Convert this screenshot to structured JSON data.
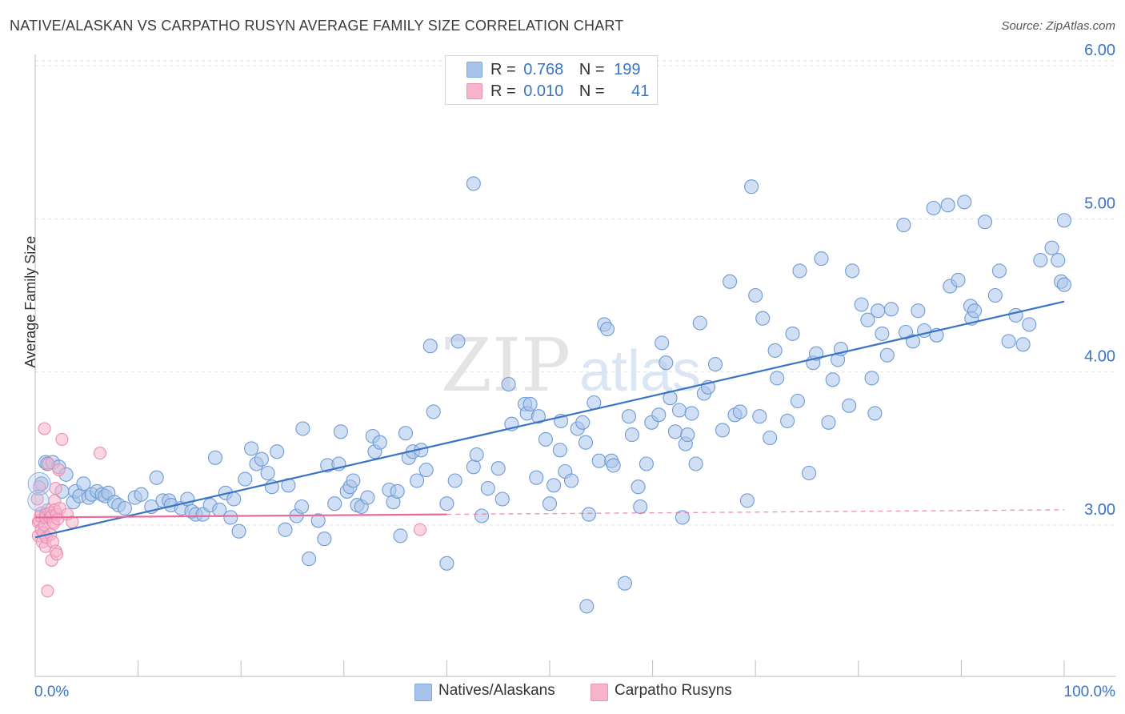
{
  "title": "NATIVE/ALASKAN VS CARPATHO RUSYN AVERAGE FAMILY SIZE CORRELATION CHART",
  "source": "Source: ZipAtlas.com",
  "watermark": {
    "zip": "ZIP",
    "atlas": "atlas"
  },
  "legend_top": [
    {
      "r_label": "R =",
      "r_value": "0.768",
      "n_label": "N =",
      "n_value": "199"
    },
    {
      "r_label": "R =",
      "r_value": "0.010",
      "n_label": "N =",
      "n_value": "41"
    }
  ],
  "legend_bottom": [
    "Natives/Alaskans",
    "Carpatho Rusyns"
  ],
  "colors": {
    "blue": "#3a74c5",
    "blue_fill": "#a9c4ea",
    "pink": "#e8699a",
    "pink_fill": "#f6b5cc",
    "grid": "#e2e2e2",
    "axis_text": "#3a74c5"
  },
  "chart_data": {
    "type": "scatter",
    "xlabel": "",
    "ylabel": "Average Family Size",
    "x_tick_labels": [
      "0.0%",
      "100.0%"
    ],
    "y_tick_labels": [
      "3.00",
      "4.00",
      "5.00",
      "6.00"
    ],
    "xlim": [
      0,
      100
    ],
    "ylim": [
      2.05,
      6.1
    ],
    "series": [
      {
        "name": "Natives/Alaskans",
        "points": [
          [
            0.6,
            3.27
          ],
          [
            1.0,
            3.41
          ],
          [
            1.2,
            3.4
          ],
          [
            1.7,
            3.41
          ],
          [
            2.3,
            3.38
          ],
          [
            2.6,
            3.22
          ],
          [
            3.0,
            3.33
          ],
          [
            3.7,
            3.15
          ],
          [
            3.9,
            3.22
          ],
          [
            4.3,
            3.19
          ],
          [
            4.7,
            3.27
          ],
          [
            5.2,
            3.18
          ],
          [
            5.5,
            3.2
          ],
          [
            6.0,
            3.22
          ],
          [
            6.5,
            3.2
          ],
          [
            6.8,
            3.19
          ],
          [
            7.1,
            3.21
          ],
          [
            7.7,
            3.15
          ],
          [
            8.1,
            3.13
          ],
          [
            8.7,
            3.11
          ],
          [
            9.7,
            3.18
          ],
          [
            10.3,
            3.2
          ],
          [
            11.3,
            3.12
          ],
          [
            11.8,
            3.31
          ],
          [
            12.4,
            3.16
          ],
          [
            13.0,
            3.16
          ],
          [
            13.2,
            3.13
          ],
          [
            14.2,
            3.11
          ],
          [
            14.8,
            3.17
          ],
          [
            15.2,
            3.09
          ],
          [
            15.6,
            3.07
          ],
          [
            16.3,
            3.07
          ],
          [
            17.0,
            3.13
          ],
          [
            17.5,
            3.44
          ],
          [
            17.9,
            3.1
          ],
          [
            18.5,
            3.21
          ],
          [
            19.0,
            3.05
          ],
          [
            19.3,
            3.17
          ],
          [
            19.8,
            2.96
          ],
          [
            20.4,
            3.3
          ],
          [
            21.0,
            3.5
          ],
          [
            21.5,
            3.4
          ],
          [
            22.0,
            3.43
          ],
          [
            22.6,
            3.34
          ],
          [
            23.0,
            3.25
          ],
          [
            23.5,
            3.48
          ],
          [
            24.3,
            2.97
          ],
          [
            24.6,
            3.26
          ],
          [
            25.4,
            3.06
          ],
          [
            25.9,
            3.12
          ],
          [
            26.0,
            3.63
          ],
          [
            26.6,
            2.78
          ],
          [
            27.5,
            3.03
          ],
          [
            28.1,
            2.91
          ],
          [
            28.4,
            3.39
          ],
          [
            29.1,
            3.14
          ],
          [
            29.5,
            3.4
          ],
          [
            29.7,
            3.61
          ],
          [
            30.3,
            3.22
          ],
          [
            30.6,
            3.25
          ],
          [
            30.9,
            3.29
          ],
          [
            31.3,
            3.13
          ],
          [
            31.7,
            3.12
          ],
          [
            32.3,
            3.18
          ],
          [
            32.8,
            3.58
          ],
          [
            33.0,
            3.48
          ],
          [
            33.5,
            3.54
          ],
          [
            34.4,
            3.23
          ],
          [
            34.8,
            3.15
          ],
          [
            35.2,
            3.22
          ],
          [
            35.5,
            2.93
          ],
          [
            36.0,
            3.6
          ],
          [
            36.3,
            3.44
          ],
          [
            36.7,
            3.48
          ],
          [
            37.1,
            3.29
          ],
          [
            37.5,
            3.49
          ],
          [
            38.0,
            3.36
          ],
          [
            38.4,
            4.17
          ],
          [
            38.7,
            3.74
          ],
          [
            40.0,
            3.14
          ],
          [
            40.0,
            2.75
          ],
          [
            40.8,
            3.29
          ],
          [
            41.1,
            4.2
          ],
          [
            42.6,
            3.38
          ],
          [
            42.6,
            5.23
          ],
          [
            42.9,
            3.46
          ],
          [
            43.4,
            3.06
          ],
          [
            44.0,
            3.24
          ],
          [
            45.0,
            3.37
          ],
          [
            45.4,
            3.17
          ],
          [
            46.0,
            3.92
          ],
          [
            46.3,
            3.66
          ],
          [
            47.6,
            3.79
          ],
          [
            47.8,
            3.73
          ],
          [
            48.1,
            3.79
          ],
          [
            48.7,
            3.31
          ],
          [
            48.9,
            3.71
          ],
          [
            49.6,
            3.56
          ],
          [
            50.0,
            3.14
          ],
          [
            50.4,
            3.26
          ],
          [
            51.0,
            3.49
          ],
          [
            51.1,
            3.68
          ],
          [
            51.5,
            3.35
          ],
          [
            52.1,
            3.29
          ],
          [
            52.7,
            3.63
          ],
          [
            53.2,
            3.67
          ],
          [
            53.5,
            3.54
          ],
          [
            53.8,
            3.07
          ],
          [
            54.3,
            3.8
          ],
          [
            54.8,
            3.42
          ],
          [
            55.3,
            4.31
          ],
          [
            55.6,
            4.28
          ],
          [
            56.0,
            3.42
          ],
          [
            56.2,
            3.39
          ],
          [
            57.3,
            2.62
          ],
          [
            57.7,
            3.71
          ],
          [
            58.0,
            3.59
          ],
          [
            58.6,
            3.25
          ],
          [
            58.8,
            3.12
          ],
          [
            59.4,
            3.4
          ],
          [
            59.9,
            3.67
          ],
          [
            60.6,
            3.72
          ],
          [
            60.9,
            4.19
          ],
          [
            61.3,
            4.06
          ],
          [
            61.7,
            3.83
          ],
          [
            62.2,
            3.61
          ],
          [
            62.6,
            3.75
          ],
          [
            63.2,
            3.53
          ],
          [
            63.4,
            3.59
          ],
          [
            63.8,
            3.73
          ],
          [
            64.2,
            3.4
          ],
          [
            64.6,
            4.32
          ],
          [
            65.0,
            3.86
          ],
          [
            65.4,
            3.9
          ],
          [
            66.1,
            4.05
          ],
          [
            66.8,
            3.62
          ],
          [
            67.5,
            4.59
          ],
          [
            68.0,
            3.72
          ],
          [
            68.5,
            3.74
          ],
          [
            69.2,
            3.16
          ],
          [
            69.6,
            5.21
          ],
          [
            70.0,
            4.5
          ],
          [
            70.4,
            3.71
          ],
          [
            70.7,
            4.35
          ],
          [
            71.4,
            3.57
          ],
          [
            71.9,
            4.14
          ],
          [
            72.1,
            3.96
          ],
          [
            73.1,
            3.68
          ],
          [
            73.6,
            4.25
          ],
          [
            74.1,
            3.81
          ],
          [
            74.3,
            4.66
          ],
          [
            75.2,
            3.34
          ],
          [
            75.6,
            4.06
          ],
          [
            75.9,
            4.12
          ],
          [
            76.4,
            4.74
          ],
          [
            77.1,
            3.67
          ],
          [
            77.5,
            3.95
          ],
          [
            78.0,
            4.08
          ],
          [
            78.3,
            4.15
          ],
          [
            79.1,
            3.78
          ],
          [
            79.4,
            4.66
          ],
          [
            80.3,
            4.44
          ],
          [
            80.9,
            4.34
          ],
          [
            81.3,
            3.96
          ],
          [
            81.6,
            3.73
          ],
          [
            81.9,
            4.4
          ],
          [
            82.3,
            4.25
          ],
          [
            82.8,
            4.11
          ],
          [
            83.2,
            4.41
          ],
          [
            84.4,
            4.96
          ],
          [
            84.6,
            4.26
          ],
          [
            85.3,
            4.2
          ],
          [
            85.8,
            4.4
          ],
          [
            86.4,
            4.27
          ],
          [
            87.3,
            5.07
          ],
          [
            87.6,
            4.24
          ],
          [
            88.7,
            5.09
          ],
          [
            88.9,
            4.56
          ],
          [
            89.7,
            4.6
          ],
          [
            90.3,
            5.11
          ],
          [
            90.9,
            4.43
          ],
          [
            91.0,
            4.35
          ],
          [
            91.3,
            4.4
          ],
          [
            92.3,
            4.98
          ],
          [
            93.3,
            4.5
          ],
          [
            93.7,
            4.66
          ],
          [
            94.6,
            4.2
          ],
          [
            95.3,
            4.37
          ],
          [
            96.0,
            4.18
          ],
          [
            96.6,
            4.31
          ],
          [
            97.7,
            4.73
          ],
          [
            98.8,
            4.81
          ],
          [
            99.4,
            4.73
          ],
          [
            99.7,
            4.59
          ],
          [
            100.0,
            4.57
          ],
          [
            100.0,
            4.99
          ],
          [
            62.9,
            3.05
          ],
          [
            53.6,
            2.47
          ]
        ]
      },
      {
        "name": "Carpatho Rusyns",
        "points": [
          [
            0.2,
            3.17
          ],
          [
            0.3,
            3.02
          ],
          [
            0.3,
            2.93
          ],
          [
            0.4,
            3.25
          ],
          [
            0.4,
            3.03
          ],
          [
            0.5,
            3.06
          ],
          [
            0.6,
            2.97
          ],
          [
            0.6,
            3.08
          ],
          [
            0.7,
            2.89
          ],
          [
            0.8,
            2.95
          ],
          [
            0.9,
            3.0
          ],
          [
            0.9,
            3.63
          ],
          [
            1.0,
            3.07
          ],
          [
            1.0,
            2.86
          ],
          [
            1.0,
            3.05
          ],
          [
            1.1,
            2.92
          ],
          [
            1.2,
            2.57
          ],
          [
            1.2,
            3.1
          ],
          [
            1.3,
            3.4
          ],
          [
            1.4,
            3.05
          ],
          [
            1.5,
            2.94
          ],
          [
            1.5,
            3.08
          ],
          [
            1.6,
            2.77
          ],
          [
            1.6,
            3.06
          ],
          [
            1.7,
            3.02
          ],
          [
            1.7,
            2.89
          ],
          [
            1.8,
            3.01
          ],
          [
            1.9,
            3.16
          ],
          [
            1.9,
            3.1
          ],
          [
            2.0,
            2.83
          ],
          [
            2.0,
            3.24
          ],
          [
            2.1,
            2.81
          ],
          [
            2.1,
            3.07
          ],
          [
            2.2,
            3.04
          ],
          [
            2.3,
            3.36
          ],
          [
            2.4,
            3.11
          ],
          [
            2.6,
            3.56
          ],
          [
            3.1,
            3.07
          ],
          [
            6.3,
            3.47
          ],
          [
            3.6,
            3.02
          ],
          [
            37.4,
            2.97
          ]
        ]
      }
    ],
    "trendlines": [
      {
        "series": "Natives/Alaskans",
        "x": [
          0,
          100
        ],
        "y": [
          2.92,
          4.46
        ]
      },
      {
        "series": "Carpatho Rusyns",
        "x": [
          0,
          100
        ],
        "y": [
          3.05,
          3.1
        ],
        "solid_to_x": 40
      }
    ],
    "grid": true,
    "legend_placement": "top-center and bottom"
  }
}
